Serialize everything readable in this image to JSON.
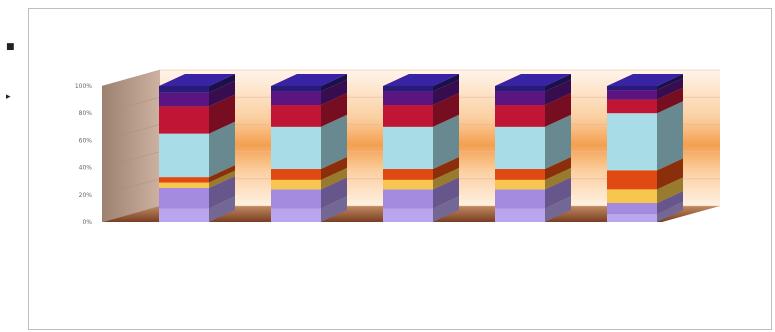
{
  "chart_data": {
    "type": "bar",
    "stacked": true,
    "percent": true,
    "three_d": true,
    "categories": [
      "",
      "",
      "",
      "",
      ""
    ],
    "top_labels": [
      "",
      "",
      "",
      "",
      ""
    ],
    "series": [
      {
        "color": "#b9a6ee",
        "values": [
          10,
          10,
          10,
          10,
          6
        ]
      },
      {
        "color": "#a58be0",
        "values": [
          15,
          14,
          14,
          14,
          8
        ]
      },
      {
        "color": "#f6c64e",
        "values": [
          4,
          7,
          7,
          7,
          10
        ]
      },
      {
        "color": "#e04a12",
        "values": [
          4,
          8,
          8,
          8,
          14
        ]
      },
      {
        "color": "#a8dde8",
        "values": [
          32,
          31,
          31,
          31,
          42
        ]
      },
      {
        "color": "#c01535",
        "values": [
          20,
          16,
          16,
          16,
          10
        ]
      },
      {
        "color": "#5a1580",
        "values": [
          10,
          10,
          10,
          10,
          7
        ]
      },
      {
        "color": "#2a1a7a",
        "values": [
          5,
          4,
          4,
          4,
          3
        ]
      }
    ],
    "segment_labels": [
      [
        "",
        "",
        "",
        "",
        ""
      ],
      [
        "",
        "",
        "",
        "",
        ""
      ],
      [
        "",
        "",
        "",
        "",
        ""
      ],
      [
        "",
        "",
        "",
        "",
        ""
      ],
      [
        "",
        "",
        "",
        "",
        ""
      ],
      [
        "",
        "",
        "",
        "",
        ""
      ],
      [
        "",
        "",
        "",
        "",
        ""
      ],
      [
        "",
        "",
        "",
        "",
        ""
      ]
    ],
    "yticks": [
      "0%",
      "20%",
      "40%",
      "60%",
      "80%",
      "100%"
    ],
    "ylim": [
      0,
      100
    ],
    "grid": true,
    "title": "",
    "xlabel": "",
    "ylabel": ""
  },
  "colors": {
    "wall_light": "#fde6cf",
    "wall_band": "#f6a95a",
    "side_wall": "#b79a8a",
    "floor": "#9a5a3a"
  }
}
